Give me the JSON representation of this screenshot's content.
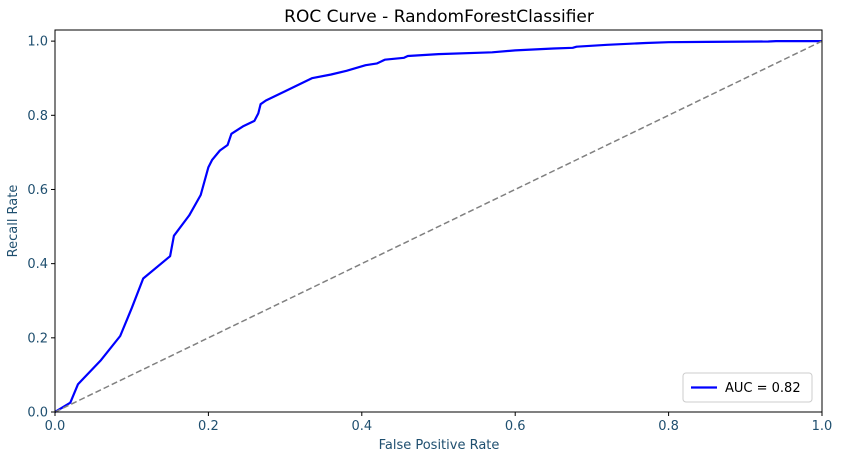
{
  "chart_data": {
    "type": "line",
    "title": "ROC Curve - RandomForestClassifier",
    "xlabel": "False Positive Rate",
    "ylabel": "Recall Rate",
    "xlim": [
      0,
      1
    ],
    "ylim": [
      0,
      1.03
    ],
    "xticks": [
      "0.0",
      "0.2",
      "0.4",
      "0.6",
      "0.8",
      "1.0"
    ],
    "yticks": [
      "0.0",
      "0.2",
      "0.4",
      "0.6",
      "0.8",
      "1.0"
    ],
    "grid": false,
    "legend_position": "lower-right",
    "series": [
      {
        "name": "AUC = 0.82",
        "color": "#0000ff",
        "x": [
          0.0,
          0.02,
          0.03,
          0.06,
          0.085,
          0.1,
          0.115,
          0.15,
          0.155,
          0.175,
          0.19,
          0.2,
          0.205,
          0.215,
          0.225,
          0.23,
          0.245,
          0.26,
          0.265,
          0.268,
          0.275,
          0.3,
          0.335,
          0.36,
          0.38,
          0.405,
          0.42,
          0.43,
          0.455,
          0.46,
          0.5,
          0.57,
          0.6,
          0.65,
          0.675,
          0.68,
          0.72,
          0.77,
          0.8,
          0.85,
          0.93,
          0.94,
          1.0
        ],
        "y": [
          0.0,
          0.025,
          0.075,
          0.14,
          0.205,
          0.28,
          0.36,
          0.42,
          0.475,
          0.53,
          0.585,
          0.66,
          0.68,
          0.705,
          0.72,
          0.75,
          0.77,
          0.785,
          0.805,
          0.83,
          0.84,
          0.865,
          0.9,
          0.91,
          0.92,
          0.935,
          0.94,
          0.95,
          0.955,
          0.96,
          0.965,
          0.97,
          0.975,
          0.98,
          0.982,
          0.985,
          0.99,
          0.995,
          0.997,
          0.998,
          0.999,
          1.0,
          1.0
        ]
      },
      {
        "name": "",
        "color": "#808080",
        "dashed": true,
        "x": [
          0,
          1
        ],
        "y": [
          0,
          1
        ]
      }
    ]
  },
  "colors": {
    "tick_text": "#1f4f6f",
    "frame": "#000000"
  }
}
